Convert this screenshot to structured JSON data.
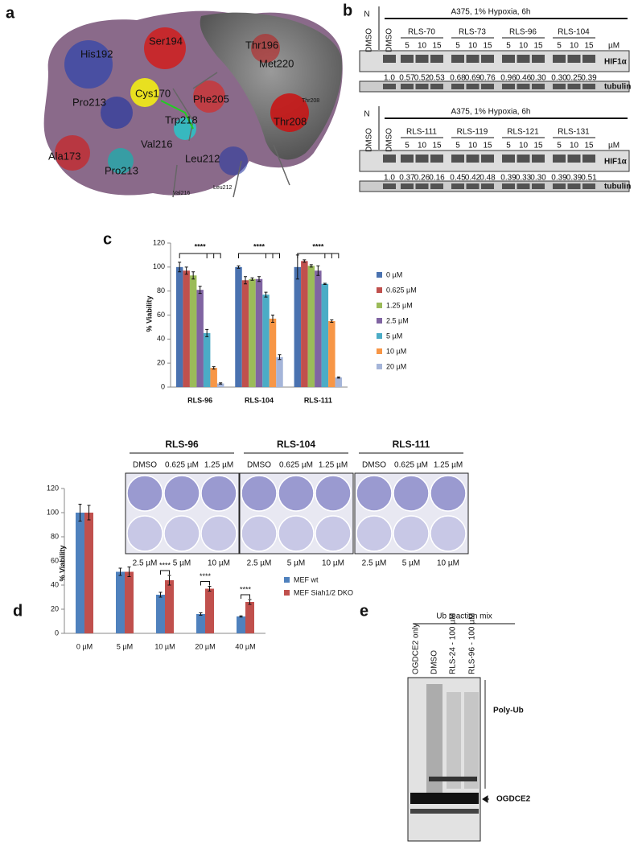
{
  "panel_a": {
    "letter": "a",
    "residues": [
      "His192",
      "Ser194",
      "Thr196",
      "Met220",
      "Cys170",
      "Phe205",
      "Pro213",
      "Thr208",
      "Trp218",
      "Ala173",
      "Val216",
      "Leu212",
      "Pro213",
      "Val216",
      "Leu212",
      "Thr208"
    ]
  },
  "panel_b": {
    "letter": "b",
    "blots": [
      {
        "n": "N",
        "dmso_n": "DMSO",
        "dmso": "DMSO",
        "condition": "A375, 1%  Hypoxia, 6h",
        "compounds": [
          "RLS-70",
          "RLS-73",
          "RLS-96",
          "RLS-104"
        ],
        "doses": [
          "5",
          "10",
          "15"
        ],
        "unit": "µM",
        "ratios": [
          "1.0",
          "0.57",
          "0.52",
          "0.53",
          "0.68",
          "0.69",
          "0.76",
          "0.96",
          "0.46",
          "0.30",
          "0.30",
          "0.25",
          "0.39"
        ],
        "bands": [
          "HIF1α",
          "tubulin"
        ]
      },
      {
        "n": "N",
        "dmso_n": "DMSO",
        "dmso": "DMSO",
        "condition": "A375, 1%  Hypoxia, 6h",
        "compounds": [
          "RLS-111",
          "RLS-119",
          "RLS-121",
          "RLS-131"
        ],
        "doses": [
          "5",
          "10",
          "15"
        ],
        "unit": "µM",
        "ratios": [
          "1.0",
          "0.37",
          "0.26",
          "0.16",
          "0.45",
          "0.42",
          "0.48",
          "0.39",
          "0.33",
          "0.30",
          "0.39",
          "0.39",
          "0.51"
        ],
        "bands": [
          "HIF1α",
          "tubulin"
        ]
      }
    ]
  },
  "panel_c": {
    "letter": "c",
    "plates": {
      "compounds": [
        "RLS-96",
        "RLS-104",
        "RLS-111"
      ],
      "top_doses": [
        "DMSO",
        "0.625 µM",
        "1.25 µM"
      ],
      "bottom_doses": [
        "2.5 µM",
        "5 µM",
        "10 µM"
      ]
    }
  },
  "panel_d": {
    "letter": "d"
  },
  "panel_e": {
    "letter": "e",
    "header": "Ub reaction mix",
    "lanes": [
      "OGDCE2 only",
      "DMSO",
      "RLS-24 - 100 µM",
      "RLS-96 - 100 µM"
    ],
    "labels": [
      "Poly-Ub",
      "OGDCE2"
    ]
  },
  "chart_data": [
    {
      "type": "bar",
      "y_label": "% Viability",
      "categories": [
        "RLS-96",
        "RLS-104",
        "RLS-111"
      ],
      "series": [
        {
          "name": "0 µM",
          "color": "#4a72b0",
          "values": [
            100,
            100,
            100
          ],
          "errors": [
            4,
            1,
            10
          ]
        },
        {
          "name": "0.625 µM",
          "color": "#c0504d",
          "values": [
            97,
            89,
            105
          ],
          "errors": [
            3,
            3,
            1
          ]
        },
        {
          "name": "1.25 µM",
          "color": "#9bbb59",
          "values": [
            93,
            90,
            101
          ],
          "errors": [
            3,
            1,
            1
          ]
        },
        {
          "name": "2.5 µM",
          "color": "#8064a2",
          "values": [
            81,
            90,
            97
          ],
          "errors": [
            3,
            2,
            4
          ]
        },
        {
          "name": "5 µM",
          "color": "#4bacc6",
          "values": [
            45,
            77,
            86
          ],
          "errors": [
            3,
            2,
            0.5
          ]
        },
        {
          "name": "10 µM",
          "color": "#f79646",
          "values": [
            16,
            57,
            55
          ],
          "errors": [
            1,
            3,
            1
          ]
        },
        {
          "name": "20 µM",
          "color": "#a5b5d9",
          "values": [
            3,
            25,
            8
          ],
          "errors": [
            0.5,
            2,
            0.5
          ]
        }
      ],
      "ylim": [
        0,
        120
      ],
      "yticks": [
        0,
        20,
        40,
        60,
        80,
        100,
        120
      ],
      "annotations": [
        "****",
        "****",
        "****"
      ]
    },
    {
      "type": "bar",
      "y_label": "% Viability",
      "categories": [
        "0 µM",
        "5 µM",
        "10 µM",
        "20 µM",
        "40 µM"
      ],
      "series": [
        {
          "name": "MEF wt",
          "color": "#4f81bd",
          "values": [
            100,
            51,
            32,
            16,
            14
          ],
          "errors": [
            7,
            3,
            2,
            1,
            0.5
          ]
        },
        {
          "name": "MEF Siah1/2 DKO",
          "color": "#c0504d",
          "values": [
            100,
            51,
            44,
            37,
            26
          ],
          "errors": [
            6,
            4,
            4,
            2,
            2
          ]
        }
      ],
      "ylim": [
        0,
        120
      ],
      "yticks": [
        0,
        20,
        40,
        60,
        80,
        100,
        120
      ],
      "annotations": [
        "**",
        "****",
        "****",
        "****"
      ]
    }
  ]
}
